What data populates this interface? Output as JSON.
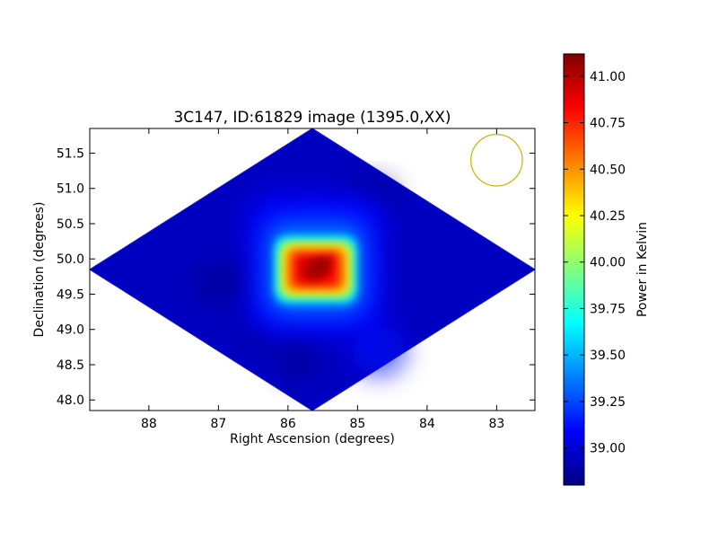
{
  "chart_data": {
    "type": "heatmap",
    "title": "3C147, ID:61829 image (1395.0,XX)",
    "xlabel": "Right Ascension (degrees)",
    "ylabel": "Declination (degrees)",
    "xlim": [
      88.85,
      82.45
    ],
    "ylim": [
      47.85,
      51.85
    ],
    "x_ticks": [
      88,
      87,
      86,
      85,
      84,
      83
    ],
    "y_ticks": [
      48.0,
      48.5,
      49.0,
      49.5,
      50.0,
      50.5,
      51.0,
      51.5
    ],
    "colorbar": {
      "label": "Power in Kelvin",
      "range": [
        38.8,
        41.12
      ],
      "ticks": [
        39.0,
        39.25,
        39.5,
        39.75,
        40.0,
        40.25,
        40.5,
        40.75,
        41.0
      ],
      "colormap": "jet"
    },
    "footprint": [
      [
        85.65,
        51.85
      ],
      [
        88.85,
        49.85
      ],
      [
        85.65,
        47.85
      ],
      [
        82.45,
        49.85
      ]
    ],
    "peak": {
      "x": 85.6,
      "y": 49.85,
      "value": 41.12
    },
    "background_value": 38.95,
    "beam": {
      "x": 83.0,
      "y": 51.4,
      "radius_deg": 0.37,
      "color": "#c8b400"
    }
  }
}
